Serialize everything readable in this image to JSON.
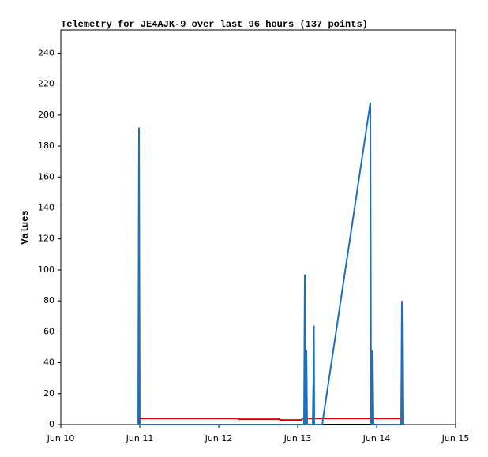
{
  "chart_data": {
    "type": "line",
    "title": "Telemetry for JE4AJK-9 over last 96 hours (137 points)",
    "y_label": "Values",
    "xlim": [
      10,
      15
    ],
    "xticks": [
      {
        "value": 10,
        "label": "Jun 10"
      },
      {
        "value": 11,
        "label": "Jun 11"
      },
      {
        "value": 12,
        "label": "Jun 12"
      },
      {
        "value": 13,
        "label": "Jun 13"
      },
      {
        "value": 14,
        "label": "Jun 14"
      },
      {
        "value": 15,
        "label": "Jun 15"
      }
    ],
    "ylim": [
      0,
      255
    ],
    "yticks": [
      0,
      20,
      40,
      60,
      80,
      100,
      120,
      140,
      160,
      180,
      200,
      220,
      240
    ],
    "series": [
      {
        "color": "#000000",
        "x": [
          10.99,
          14.32
        ],
        "values": [
          0,
          0
        ]
      },
      {
        "color": "#e00000",
        "x": [
          10.99,
          12.25,
          12.26,
          12.77,
          12.78,
          13.05,
          13.06,
          14.32
        ],
        "values": [
          4,
          4,
          3.5,
          3.5,
          3,
          3,
          4,
          4
        ]
      },
      {
        "color": "#1f6fbf",
        "x": [
          10.98,
          10.99,
          11.0,
          13.08,
          13.09,
          13.1,
          13.11,
          13.12,
          13.19,
          13.2,
          13.205,
          13.21,
          13.31,
          13.92,
          13.93,
          13.94,
          13.95,
          14.31,
          14.32,
          14.33
        ],
        "values": [
          0,
          192,
          0,
          0,
          97,
          0,
          48,
          0,
          0,
          32,
          64,
          0,
          0,
          208,
          0,
          48,
          0,
          0,
          80,
          0
        ]
      }
    ]
  }
}
